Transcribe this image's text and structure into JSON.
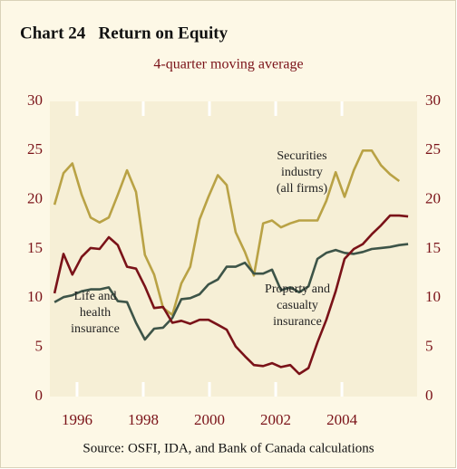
{
  "chart_data": {
    "type": "line",
    "title": "Chart 24   Return on Equity",
    "subtitle": "4-quarter moving average",
    "source": "Source: OSFI, IDA, and Bank of Canada calculations",
    "x": [
      1995.32,
      1995.59,
      1995.86,
      1996.14,
      1996.41,
      1996.68,
      1996.96,
      1997.23,
      1997.51,
      1997.78,
      1998.05,
      1998.33,
      1998.6,
      1998.88,
      1999.15,
      1999.42,
      1999.7,
      1999.97,
      2000.25,
      2000.52,
      2000.79,
      2001.07,
      2001.34,
      2001.62,
      2001.89,
      2002.16,
      2002.44,
      2002.71,
      2002.99,
      2003.26,
      2003.53,
      2003.81,
      2004.08,
      2004.36,
      2004.63,
      2004.9,
      2005.18,
      2005.45,
      2005.73,
      2006.0
    ],
    "xlim": [
      1995.18,
      2006.27
    ],
    "xticks": [
      1996,
      1998,
      2000,
      2002,
      2004
    ],
    "ylim": [
      0,
      30
    ],
    "yticks": [
      0,
      5,
      10,
      15,
      20,
      25,
      30
    ],
    "grid": false,
    "series": [
      {
        "name": "Securities industry (all firms)",
        "color": "#b9a245",
        "values": [
          19.5,
          22.7,
          23.7,
          20.5,
          18.2,
          17.7,
          18.2,
          20.5,
          23,
          20.8,
          14.4,
          12.4,
          9,
          8.3,
          11.5,
          13.2,
          18,
          20.3,
          22.5,
          21.5,
          16.7,
          14.7,
          12.3,
          17.6,
          17.9,
          17.2,
          17.6,
          17.9,
          17.9,
          17.9,
          19.9,
          22.8,
          20.3,
          23,
          25,
          25,
          23.5,
          22.6,
          21.9,
          null
        ]
      },
      {
        "name": "Life and health insurance",
        "color": "#3d5448",
        "values": [
          9.6,
          10.1,
          10.3,
          10.7,
          10.9,
          10.9,
          11.1,
          9.7,
          9.6,
          7.5,
          5.8,
          6.9,
          7,
          8,
          9.9,
          10,
          10.4,
          11.4,
          11.9,
          13.2,
          13.2,
          13.6,
          12.5,
          12.5,
          12.9,
          10.8,
          11.1,
          10.6,
          11.2,
          14,
          14.6,
          14.9,
          14.6,
          14.5,
          14.7,
          15,
          15.1,
          15.2,
          15.4,
          15.5
        ]
      },
      {
        "name": "Property and casualty insurance",
        "color": "#7a1218",
        "values": [
          10.5,
          14.5,
          12.4,
          14.2,
          15.1,
          15,
          16.2,
          15.4,
          13.2,
          13,
          11.2,
          9,
          9.1,
          7.5,
          7.7,
          7.4,
          7.8,
          7.8,
          7.3,
          6.8,
          5.1,
          4.1,
          3.2,
          3.1,
          3.4,
          3,
          3.2,
          2.3,
          2.9,
          5.5,
          7.8,
          10.7,
          14,
          15,
          15.5,
          16.5,
          17.4,
          18.4,
          18.4,
          18.3
        ]
      }
    ],
    "annotations": [
      {
        "lines": [
          "Securities",
          "industry",
          "(all firms)"
        ]
      },
      {
        "lines": [
          "Life and",
          "health",
          "insurance"
        ]
      },
      {
        "lines": [
          "Property and",
          "casualty",
          "insurance"
        ]
      }
    ]
  }
}
